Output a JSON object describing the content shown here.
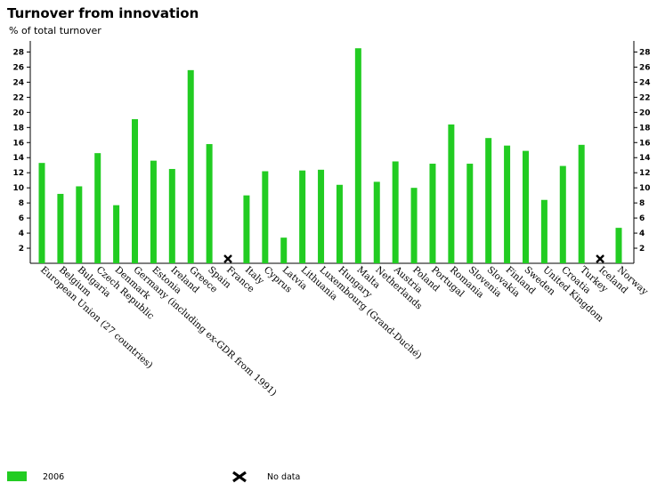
{
  "chart_data": {
    "type": "bar",
    "title": "Turnover from innovation",
    "subtitle": "% of total turnover",
    "xlabel": "",
    "ylabel": "",
    "ylim": [
      0,
      29
    ],
    "yticks": [
      2,
      4,
      6,
      8,
      10,
      12,
      14,
      16,
      18,
      20,
      22,
      24,
      26,
      28
    ],
    "grid": false,
    "bar_color": "#22cc22",
    "categories": [
      "European Union (27 countries)",
      "Belgium",
      "Bulgaria",
      "Czech Republic",
      "Denmark",
      "Germany (including ex-GDR from 1991)",
      "Estonia",
      "Ireland",
      "Greece",
      "Spain",
      "France",
      "Italy",
      "Cyprus",
      "Latvia",
      "Lithuania",
      "Luxembourg (Grand-Duché)",
      "Hungary",
      "Malta",
      "Netherlands",
      "Austria",
      "Poland",
      "Portugal",
      "Romania",
      "Slovenia",
      "Slovakia",
      "Finland",
      "Sweden",
      "United Kingdom",
      "Croatia",
      "Turkey",
      "Iceland",
      "Norway"
    ],
    "series": [
      {
        "name": "2006",
        "values": [
          13.3,
          9.2,
          10.2,
          14.6,
          7.7,
          19.1,
          13.6,
          12.5,
          25.6,
          15.8,
          null,
          9.0,
          12.2,
          3.4,
          12.3,
          12.4,
          10.4,
          28.5,
          10.8,
          13.5,
          10.0,
          13.2,
          18.4,
          13.2,
          16.6,
          15.6,
          14.9,
          8.4,
          12.9,
          15.7,
          null,
          4.7
        ]
      }
    ],
    "no_data_marker": "X",
    "legend": {
      "placement": "bottom-left",
      "items": [
        {
          "label": "2006",
          "type": "swatch"
        },
        {
          "label": "No data",
          "type": "cross"
        }
      ]
    }
  }
}
